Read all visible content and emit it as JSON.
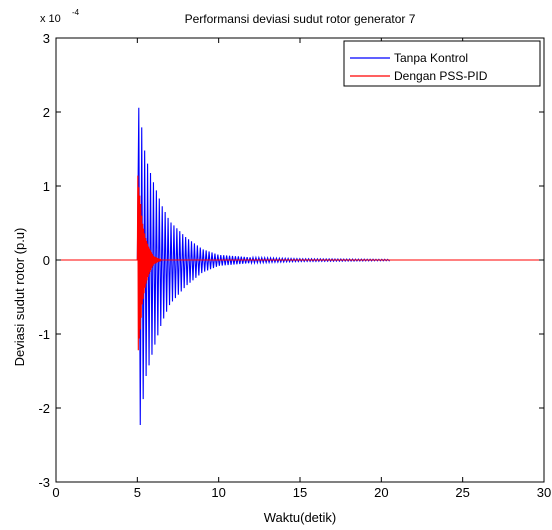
{
  "chart_data": {
    "type": "line",
    "title": "Performansi deviasi sudut rotor generator 7",
    "xlabel": "Waktu(detik)",
    "ylabel": "Deviasi sudut rotor (p.u)",
    "xlim": [
      0,
      30
    ],
    "ylim": [
      -3,
      3
    ],
    "y_scale_label": "x 10",
    "y_scale_exponent": "-4",
    "xticks": [
      "0",
      "5",
      "10",
      "15",
      "20",
      "25",
      "30"
    ],
    "yticks": [
      "3",
      "2",
      "1",
      "0",
      "-1",
      "-2",
      "-3"
    ],
    "grid": false,
    "legend_position": "top-right",
    "series": [
      {
        "name": "Tanpa Kontrol",
        "color": "#0000ff",
        "disturbance_time": 5.0,
        "end_time": 20.5,
        "envelope_time": [
          5.0,
          5.2,
          5.5,
          6.0,
          6.5,
          7.0,
          8.0,
          9.0,
          10.0,
          12.0,
          15.0,
          20.5
        ],
        "envelope_amplitude": [
          2.5,
          2.2,
          1.6,
          1.2,
          0.85,
          0.6,
          0.35,
          0.17,
          0.08,
          0.04,
          0.02,
          0.01
        ],
        "oscillation_period": 0.18
      },
      {
        "name": "Dengan PSS-PID",
        "color": "#ff0000",
        "disturbance_time": 5.0,
        "end_time": 30,
        "envelope_time": [
          5.0,
          5.1,
          5.2,
          5.3,
          5.5,
          5.7,
          6.0,
          6.5,
          30
        ],
        "envelope_amplitude": [
          1.4,
          1.1,
          0.9,
          0.6,
          0.35,
          0.2,
          0.06,
          0.0,
          0.0
        ],
        "oscillation_period": 0.06
      }
    ]
  }
}
